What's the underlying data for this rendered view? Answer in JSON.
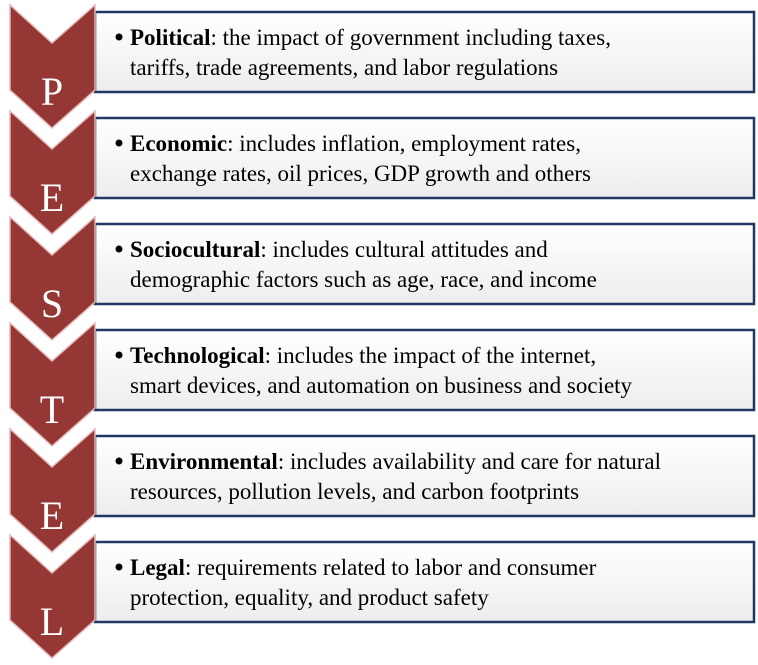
{
  "items": [
    {
      "letter": "P",
      "term": "Political",
      "lines": [
        ": the impact of government including taxes,",
        "tariffs, trade agreements, and labor regulations"
      ]
    },
    {
      "letter": "E",
      "term": "Economic",
      "lines": [
        ": includes inflation, employment rates,",
        "exchange rates, oil prices, GDP growth and others"
      ]
    },
    {
      "letter": "S",
      "term": "Sociocultural",
      "lines": [
        ": includes cultural attitudes and",
        "demographic factors such as age, race, and income"
      ]
    },
    {
      "letter": "T",
      "term": "Technological",
      "lines": [
        ": includes the impact of the internet,",
        "smart devices, and automation on business and society"
      ]
    },
    {
      "letter": "E",
      "term": "Environmental",
      "lines": [
        ": includes availability and care for natural",
        "resources, pollution levels, and carbon footprints"
      ]
    },
    {
      "letter": "L",
      "term": "Legal",
      "lines": [
        ": requirements related to labor and consumer",
        "protection, equality, and product safety"
      ]
    }
  ]
}
